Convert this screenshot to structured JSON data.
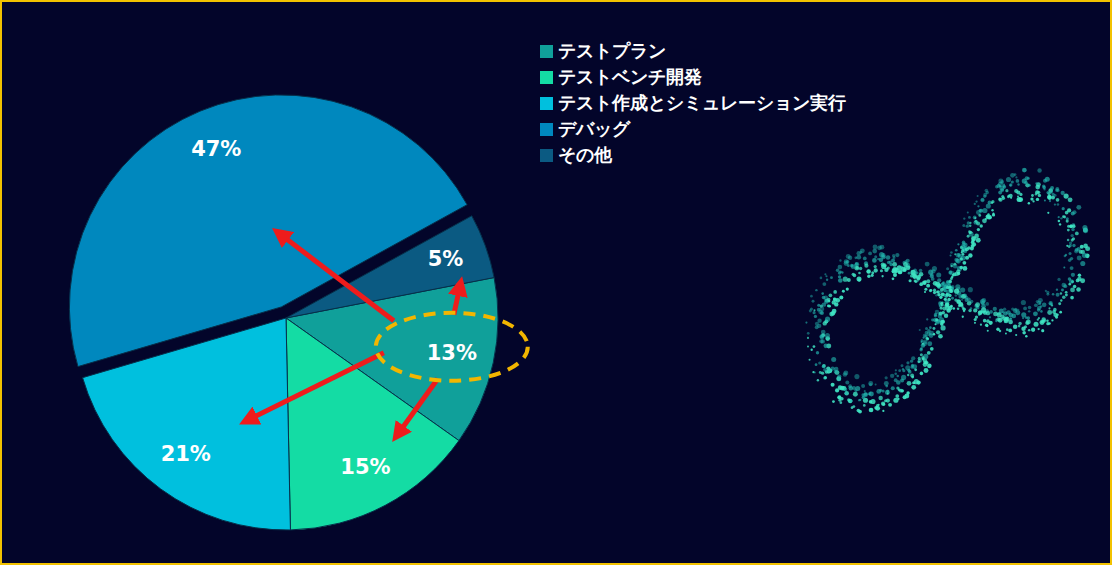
{
  "chart_data": {
    "type": "pie",
    "categories": [
      "テストプラン",
      "テストベンチ開発",
      "テスト作成とシミュレーション実行",
      "デバッグ",
      "その他"
    ],
    "values": [
      13,
      15,
      21,
      47,
      5
    ],
    "value_labels": [
      "13%",
      "15%",
      "21%",
      "47%",
      "5%"
    ],
    "colors": [
      "#10a09a",
      "#14dca4",
      "#00c0de",
      "#0088be",
      "#0b5a82"
    ],
    "data_labels": true,
    "legend": "top-right"
  }
}
